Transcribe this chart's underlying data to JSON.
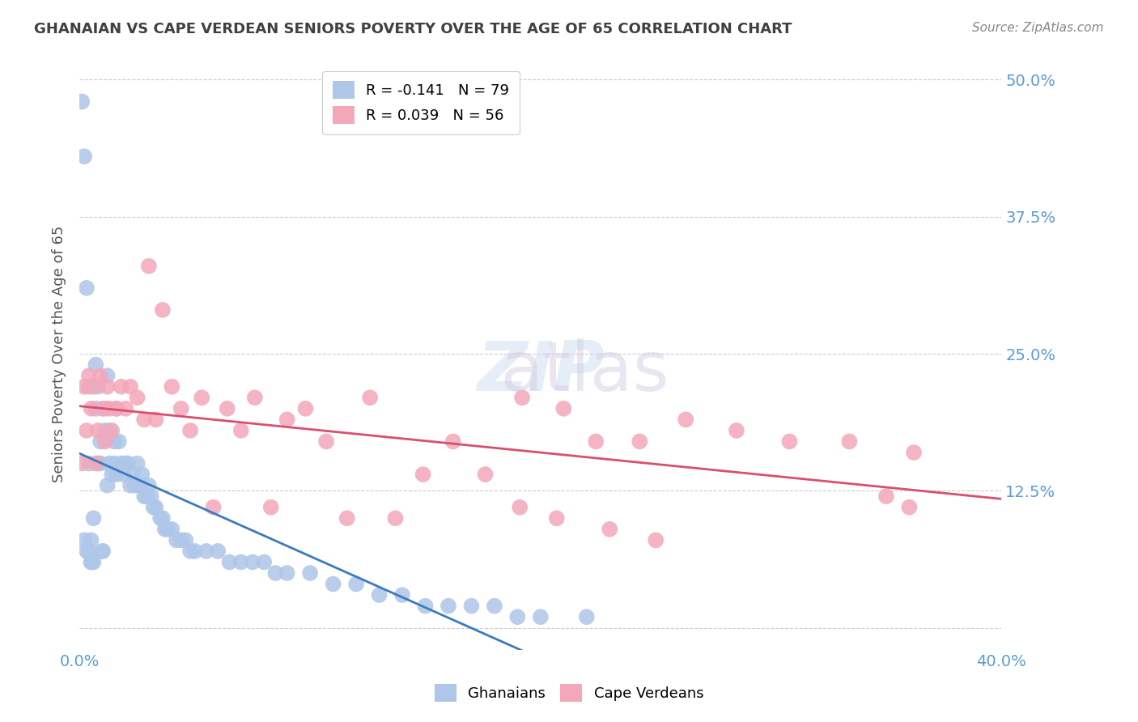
{
  "title": "GHANAIAN VS CAPE VERDEAN SENIORS POVERTY OVER THE AGE OF 65 CORRELATION CHART",
  "source": "Source: ZipAtlas.com",
  "xlabel": "",
  "ylabel": "Seniors Poverty Over the Age of 65",
  "xlim": [
    0.0,
    0.4
  ],
  "ylim": [
    -0.02,
    0.52
  ],
  "yticks": [
    0.0,
    0.125,
    0.25,
    0.375,
    0.5
  ],
  "ytick_labels": [
    "",
    "12.5%",
    "25.0%",
    "37.5%",
    "50.0%"
  ],
  "xticks": [
    0.0,
    0.05,
    0.1,
    0.15,
    0.2,
    0.25,
    0.3,
    0.35,
    0.4
  ],
  "xtick_labels": [
    "0.0%",
    "",
    "",
    "",
    "",
    "",
    "",
    "",
    "40.0%"
  ],
  "ghanaian_color": "#aec6e8",
  "capeverdean_color": "#f4a7b9",
  "trend_ghanaian_color": "#3a7abf",
  "trend_capeverdean_color": "#d94f6e",
  "trend_extend_color": "#b0c8e8",
  "legend_R_ghana": "R = -0.141",
  "legend_N_ghana": "N = 79",
  "legend_R_cape": "R = 0.039",
  "legend_N_cape": "N = 56",
  "watermark": "ZIPatlas",
  "background_color": "#ffffff",
  "grid_color": "#cccccc",
  "tick_label_color": "#5b9bd5",
  "title_color": "#404040",
  "ghana_x": [
    0.001,
    0.002,
    0.002,
    0.003,
    0.003,
    0.004,
    0.004,
    0.004,
    0.005,
    0.005,
    0.005,
    0.006,
    0.006,
    0.007,
    0.007,
    0.008,
    0.008,
    0.009,
    0.009,
    0.01,
    0.01,
    0.011,
    0.011,
    0.012,
    0.012,
    0.013,
    0.013,
    0.014,
    0.015,
    0.015,
    0.016,
    0.016,
    0.017,
    0.018,
    0.019,
    0.02,
    0.021,
    0.022,
    0.023,
    0.024,
    0.025,
    0.026,
    0.027,
    0.028,
    0.029,
    0.03,
    0.031,
    0.032,
    0.033,
    0.035,
    0.036,
    0.037,
    0.038,
    0.04,
    0.042,
    0.044,
    0.046,
    0.048,
    0.05,
    0.055,
    0.06,
    0.065,
    0.07,
    0.075,
    0.08,
    0.085,
    0.09,
    0.1,
    0.11,
    0.12,
    0.13,
    0.14,
    0.15,
    0.16,
    0.17,
    0.18,
    0.19,
    0.2,
    0.22
  ],
  "ghana_y": [
    0.48,
    0.43,
    0.08,
    0.31,
    0.07,
    0.07,
    0.15,
    0.22,
    0.06,
    0.06,
    0.08,
    0.06,
    0.1,
    0.2,
    0.24,
    0.15,
    0.22,
    0.15,
    0.17,
    0.07,
    0.07,
    0.18,
    0.2,
    0.23,
    0.13,
    0.15,
    0.18,
    0.14,
    0.15,
    0.17,
    0.2,
    0.14,
    0.17,
    0.15,
    0.14,
    0.15,
    0.15,
    0.13,
    0.14,
    0.13,
    0.15,
    0.13,
    0.14,
    0.12,
    0.12,
    0.13,
    0.12,
    0.11,
    0.11,
    0.1,
    0.1,
    0.09,
    0.09,
    0.09,
    0.08,
    0.08,
    0.08,
    0.07,
    0.07,
    0.07,
    0.07,
    0.06,
    0.06,
    0.06,
    0.06,
    0.05,
    0.05,
    0.05,
    0.04,
    0.04,
    0.03,
    0.03,
    0.02,
    0.02,
    0.02,
    0.02,
    0.01,
    0.01,
    0.01
  ],
  "cape_x": [
    0.001,
    0.002,
    0.003,
    0.004,
    0.005,
    0.006,
    0.007,
    0.008,
    0.009,
    0.01,
    0.011,
    0.012,
    0.013,
    0.014,
    0.016,
    0.018,
    0.02,
    0.022,
    0.025,
    0.028,
    0.03,
    0.033,
    0.036,
    0.04,
    0.044,
    0.048,
    0.053,
    0.058,
    0.064,
    0.07,
    0.076,
    0.083,
    0.09,
    0.098,
    0.107,
    0.116,
    0.126,
    0.137,
    0.149,
    0.162,
    0.176,
    0.191,
    0.207,
    0.224,
    0.243,
    0.263,
    0.285,
    0.308,
    0.334,
    0.362,
    0.192,
    0.21,
    0.23,
    0.25,
    0.35,
    0.36
  ],
  "cape_y": [
    0.15,
    0.22,
    0.18,
    0.23,
    0.2,
    0.22,
    0.15,
    0.18,
    0.23,
    0.2,
    0.17,
    0.22,
    0.2,
    0.18,
    0.2,
    0.22,
    0.2,
    0.22,
    0.21,
    0.19,
    0.33,
    0.19,
    0.29,
    0.22,
    0.2,
    0.18,
    0.21,
    0.11,
    0.2,
    0.18,
    0.21,
    0.11,
    0.19,
    0.2,
    0.17,
    0.1,
    0.21,
    0.1,
    0.14,
    0.17,
    0.14,
    0.11,
    0.1,
    0.17,
    0.17,
    0.19,
    0.18,
    0.17,
    0.17,
    0.16,
    0.21,
    0.2,
    0.09,
    0.08,
    0.12,
    0.11
  ]
}
